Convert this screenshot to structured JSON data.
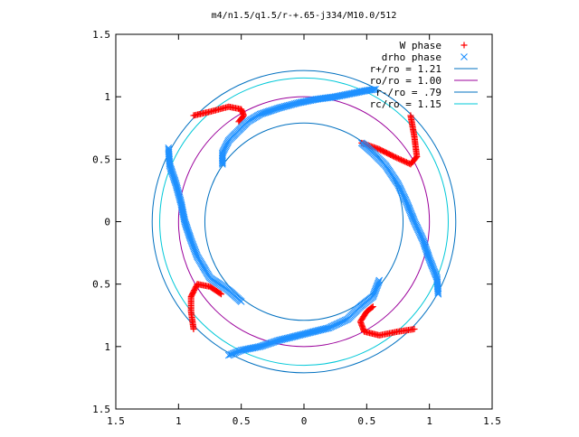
{
  "chart_data": {
    "type": "scatter",
    "title": "m4/n1.5/q1.5/r-+.65-j334/M10.0/512",
    "xlabel": "",
    "ylabel": "",
    "xlim": [
      -1.5,
      1.5
    ],
    "ylim": [
      -1.5,
      1.5
    ],
    "x_ticks": [
      -1.5,
      -1,
      -0.5,
      0,
      0.5,
      1,
      1.5
    ],
    "y_ticks": [
      -1.5,
      -1,
      -0.5,
      0,
      0.5,
      1,
      1.5
    ],
    "x_tick_labels": [
      "1.5",
      "1",
      "0.5",
      "0",
      "0.5",
      "1",
      "1.5"
    ],
    "y_tick_labels": [
      "1.5",
      "1",
      "0.5",
      "0",
      "0.5",
      "1",
      "1.5"
    ],
    "grid": false,
    "legend_position": "top-right",
    "series": [
      {
        "name": "W phase",
        "marker": "plus",
        "color": "#ff0000",
        "description_points": [
          [
            [
              -0.88,
              0.85
            ],
            [
              -0.75,
              0.88
            ],
            [
              -0.6,
              0.92
            ],
            [
              -0.5,
              0.9
            ],
            [
              -0.48,
              0.85
            ],
            [
              -0.52,
              0.8
            ]
          ],
          [
            [
              0.46,
              0.63
            ],
            [
              0.6,
              0.58
            ],
            [
              0.72,
              0.52
            ],
            [
              0.85,
              0.46
            ],
            [
              0.9,
              0.52
            ],
            [
              0.88,
              0.68
            ],
            [
              0.85,
              0.85
            ]
          ],
          [
            [
              -0.88,
              -0.86
            ],
            [
              -0.9,
              -0.72
            ],
            [
              -0.9,
              -0.6
            ],
            [
              -0.85,
              -0.5
            ],
            [
              -0.75,
              -0.52
            ],
            [
              -0.66,
              -0.58
            ]
          ],
          [
            [
              0.88,
              -0.86
            ],
            [
              0.75,
              -0.88
            ],
            [
              0.6,
              -0.91
            ],
            [
              0.48,
              -0.88
            ],
            [
              0.45,
              -0.8
            ],
            [
              0.5,
              -0.72
            ],
            [
              0.55,
              -0.68
            ]
          ]
        ]
      },
      {
        "name": "drho phase",
        "marker": "x",
        "color": "#1e90ff",
        "description_points": [
          [
            [
              -0.65,
              0.46
            ],
            [
              -0.65,
              0.55
            ],
            [
              -0.6,
              0.65
            ],
            [
              -0.52,
              0.73
            ],
            [
              -0.45,
              0.8
            ],
            [
              -0.35,
              0.86
            ],
            [
              -0.2,
              0.91
            ],
            [
              -0.05,
              0.95
            ],
            [
              0.1,
              0.98
            ],
            [
              0.25,
              1.0
            ],
            [
              0.4,
              1.03
            ],
            [
              0.5,
              1.05
            ],
            [
              0.57,
              1.06
            ]
          ],
          [
            [
              0.46,
              0.63
            ],
            [
              0.55,
              0.55
            ],
            [
              0.65,
              0.45
            ],
            [
              0.75,
              0.3
            ],
            [
              0.82,
              0.15
            ],
            [
              0.88,
              0.0
            ],
            [
              0.95,
              -0.15
            ],
            [
              1.0,
              -0.3
            ],
            [
              1.06,
              -0.45
            ],
            [
              1.07,
              -0.58
            ]
          ],
          [
            [
              -1.08,
              0.59
            ],
            [
              -1.07,
              0.45
            ],
            [
              -1.02,
              0.3
            ],
            [
              -0.98,
              0.15
            ],
            [
              -0.95,
              0.0
            ],
            [
              -0.9,
              -0.15
            ],
            [
              -0.85,
              -0.28
            ],
            [
              -0.75,
              -0.45
            ],
            [
              -0.6,
              -0.55
            ],
            [
              -0.5,
              -0.64
            ]
          ],
          [
            [
              0.6,
              -0.47
            ],
            [
              0.55,
              -0.6
            ],
            [
              0.45,
              -0.68
            ],
            [
              0.35,
              -0.78
            ],
            [
              0.2,
              -0.85
            ],
            [
              0.0,
              -0.9
            ],
            [
              -0.2,
              -0.95
            ],
            [
              -0.35,
              -1.0
            ],
            [
              -0.5,
              -1.03
            ],
            [
              -0.6,
              -1.07
            ]
          ]
        ]
      }
    ],
    "circles": [
      {
        "label": "r+/ro = 1.21",
        "radius": 1.21,
        "color": "#0070c0"
      },
      {
        "label": "ro/ro = 1.00",
        "radius": 1.0,
        "color": "#9b009b"
      },
      {
        "label": "r-/ro = .79",
        "radius": 0.79,
        "color": "#0070c0"
      },
      {
        "label": "rc/ro = 1.15",
        "radius": 1.15,
        "color": "#00c8d8"
      }
    ]
  }
}
